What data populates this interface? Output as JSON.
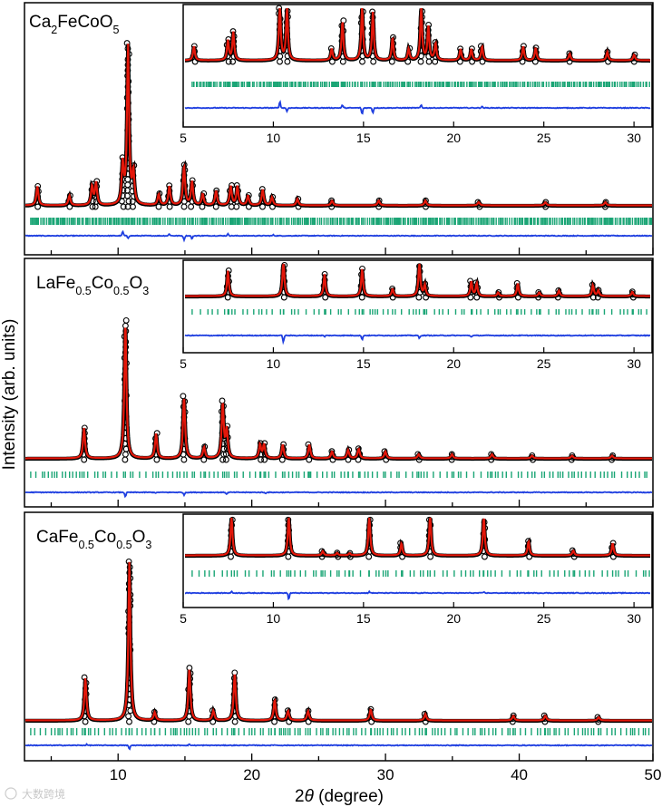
{
  "figure": {
    "ylabel": "Intensity (arb. units)",
    "xlabel_prefix": "2",
    "xlabel_theta": "θ",
    "xlabel_suffix": " (degree)",
    "x_ticks": [
      "10",
      "20",
      "30",
      "40",
      "50"
    ],
    "inset_ticks": [
      "5",
      "10",
      "15",
      "20",
      "25",
      "30"
    ],
    "watermark": "大数跨境"
  },
  "panels": [
    {
      "label_parts": [
        {
          "t": "Ca"
        },
        {
          "t": "2",
          "sub": true
        },
        {
          "t": "FeCoO"
        },
        {
          "t": "5",
          "sub": true
        }
      ]
    },
    {
      "label_parts": [
        {
          "t": "LaFe"
        },
        {
          "t": "0.5",
          "sub": true
        },
        {
          "t": "Co"
        },
        {
          "t": "0.5",
          "sub": true
        },
        {
          "t": "O"
        },
        {
          "t": "3",
          "sub": true
        }
      ]
    },
    {
      "label_parts": [
        {
          "t": "CaFe"
        },
        {
          "t": "0.5",
          "sub": true
        },
        {
          "t": "Co"
        },
        {
          "t": "0.5",
          "sub": true
        },
        {
          "t": "O"
        },
        {
          "t": "3",
          "sub": true
        }
      ]
    }
  ],
  "colors": {
    "observed": "#000000",
    "calculated": "#e3170a",
    "bragg": "#1aa575",
    "difference": "#1f3fe0",
    "axis": "#000000"
  },
  "chart_data": [
    {
      "type": "line",
      "title": "Ca2FeCoO5",
      "xlabel": "2θ (degree)",
      "ylabel": "Intensity (arb. units)",
      "xlim": [
        3,
        50
      ],
      "series": [
        {
          "name": "observed",
          "style": "open circles"
        },
        {
          "name": "calculated",
          "style": "red line"
        },
        {
          "name": "Bragg positions",
          "style": "green ticks"
        },
        {
          "name": "difference",
          "style": "blue line"
        }
      ],
      "peaks": [
        [
          3.9,
          0.12
        ],
        [
          6.3,
          0.06
        ],
        [
          8.0,
          0.12
        ],
        [
          8.3,
          0.14
        ],
        [
          10.3,
          0.25
        ],
        [
          10.7,
          1.0
        ],
        [
          11.1,
          0.2
        ],
        [
          13.0,
          0.07
        ],
        [
          13.8,
          0.12
        ],
        [
          14.9,
          0.25
        ],
        [
          15.5,
          0.15
        ],
        [
          16.3,
          0.07
        ],
        [
          17.3,
          0.09
        ],
        [
          18.4,
          0.12
        ],
        [
          18.9,
          0.12
        ],
        [
          19.7,
          0.06
        ],
        [
          20.8,
          0.1
        ],
        [
          21.5,
          0.05
        ],
        [
          23.4,
          0.04
        ],
        [
          26.0,
          0.03
        ],
        [
          29.5,
          0.03
        ],
        [
          33.0,
          0.03
        ],
        [
          37.0,
          0.02
        ],
        [
          42.0,
          0.02
        ],
        [
          46.5,
          0.02
        ]
      ],
      "inset": {
        "xlim": [
          5,
          31
        ],
        "peaks": [
          [
            5.5,
            0.25
          ],
          [
            7.4,
            0.35
          ],
          [
            7.7,
            0.5
          ],
          [
            10.3,
            1.0
          ],
          [
            10.7,
            0.95
          ],
          [
            13.2,
            0.2
          ],
          [
            13.8,
            0.7
          ],
          [
            14.9,
            0.95
          ],
          [
            15.5,
            0.85
          ],
          [
            16.6,
            0.4
          ],
          [
            17.5,
            0.2
          ],
          [
            18.2,
            0.95
          ],
          [
            18.6,
            0.6
          ],
          [
            19.0,
            0.3
          ],
          [
            20.4,
            0.2
          ],
          [
            21.0,
            0.2
          ],
          [
            21.6,
            0.25
          ],
          [
            23.9,
            0.25
          ],
          [
            24.6,
            0.22
          ],
          [
            26.5,
            0.12
          ],
          [
            28.6,
            0.15
          ],
          [
            30.1,
            0.1
          ]
        ],
        "diff_spikes": [
          [
            10.3,
            0.9
          ],
          [
            10.7,
            -0.5
          ],
          [
            13.8,
            0.4
          ],
          [
            14.9,
            -0.9
          ],
          [
            15.5,
            -0.7
          ],
          [
            18.2,
            0.4
          ],
          [
            21.6,
            0.2
          ]
        ]
      }
    },
    {
      "type": "line",
      "title": "LaFe0.5Co0.5O3",
      "xlabel": "2θ (degree)",
      "ylabel": "Intensity (arb. units)",
      "xlim": [
        3,
        50
      ],
      "peaks": [
        [
          7.4,
          0.22
        ],
        [
          10.5,
          1.0
        ],
        [
          12.8,
          0.18
        ],
        [
          14.9,
          0.45
        ],
        [
          16.4,
          0.08
        ],
        [
          17.8,
          0.4
        ],
        [
          18.1,
          0.2
        ],
        [
          20.6,
          0.1
        ],
        [
          20.9,
          0.1
        ],
        [
          22.3,
          0.1
        ],
        [
          24.3,
          0.1
        ],
        [
          26.0,
          0.05
        ],
        [
          27.2,
          0.06
        ],
        [
          28.0,
          0.07
        ],
        [
          30.0,
          0.05
        ],
        [
          32.5,
          0.03
        ],
        [
          35.0,
          0.03
        ],
        [
          38.0,
          0.03
        ],
        [
          41.0,
          0.02
        ],
        [
          44.0,
          0.02
        ],
        [
          47.0,
          0.02
        ]
      ],
      "inset": {
        "xlim": [
          5,
          31
        ],
        "peaks": [
          [
            7.4,
            0.7
          ],
          [
            10.5,
            1.0
          ],
          [
            12.8,
            0.6
          ],
          [
            14.9,
            0.75
          ],
          [
            16.6,
            0.2
          ],
          [
            18.1,
            0.95
          ],
          [
            18.4,
            0.3
          ],
          [
            21.0,
            0.4
          ],
          [
            21.3,
            0.35
          ],
          [
            22.5,
            0.1
          ],
          [
            23.6,
            0.35
          ],
          [
            24.8,
            0.1
          ],
          [
            25.9,
            0.15
          ],
          [
            27.8,
            0.3
          ],
          [
            28.1,
            0.15
          ],
          [
            30.0,
            0.12
          ]
        ],
        "diff_spikes": [
          [
            10.5,
            -0.9
          ],
          [
            14.9,
            -0.6
          ],
          [
            18.1,
            -0.4
          ],
          [
            21.0,
            -0.2
          ],
          [
            12.8,
            -0.15
          ]
        ]
      }
    },
    {
      "type": "line",
      "title": "CaFe0.5Co0.5O3",
      "xlabel": "2θ (degree)",
      "ylabel": "Intensity (arb. units)",
      "xlim": [
        3,
        50
      ],
      "peaks": [
        [
          7.5,
          0.27
        ],
        [
          10.8,
          1.0
        ],
        [
          12.7,
          0.05
        ],
        [
          15.3,
          0.33
        ],
        [
          17.1,
          0.06
        ],
        [
          18.7,
          0.3
        ],
        [
          21.7,
          0.13
        ],
        [
          22.7,
          0.06
        ],
        [
          24.2,
          0.06
        ],
        [
          28.9,
          0.07
        ],
        [
          33.0,
          0.04
        ],
        [
          39.6,
          0.03
        ],
        [
          42.0,
          0.03
        ],
        [
          46.0,
          0.02
        ]
      ],
      "inset": {
        "xlim": [
          5,
          31
        ],
        "peaks": [
          [
            7.6,
            1.0
          ],
          [
            10.8,
            1.0
          ],
          [
            12.7,
            0.1
          ],
          [
            13.5,
            0.06
          ],
          [
            14.2,
            0.05
          ],
          [
            15.3,
            1.0
          ],
          [
            17.1,
            0.3
          ],
          [
            18.7,
            1.0
          ],
          [
            21.7,
            0.95
          ],
          [
            24.2,
            0.35
          ],
          [
            26.7,
            0.12
          ],
          [
            28.9,
            0.3
          ]
        ],
        "diff_spikes": [
          [
            10.8,
            -0.9
          ],
          [
            7.6,
            0.2
          ],
          [
            15.3,
            0.2
          ],
          [
            21.7,
            0.15
          ]
        ]
      }
    }
  ]
}
